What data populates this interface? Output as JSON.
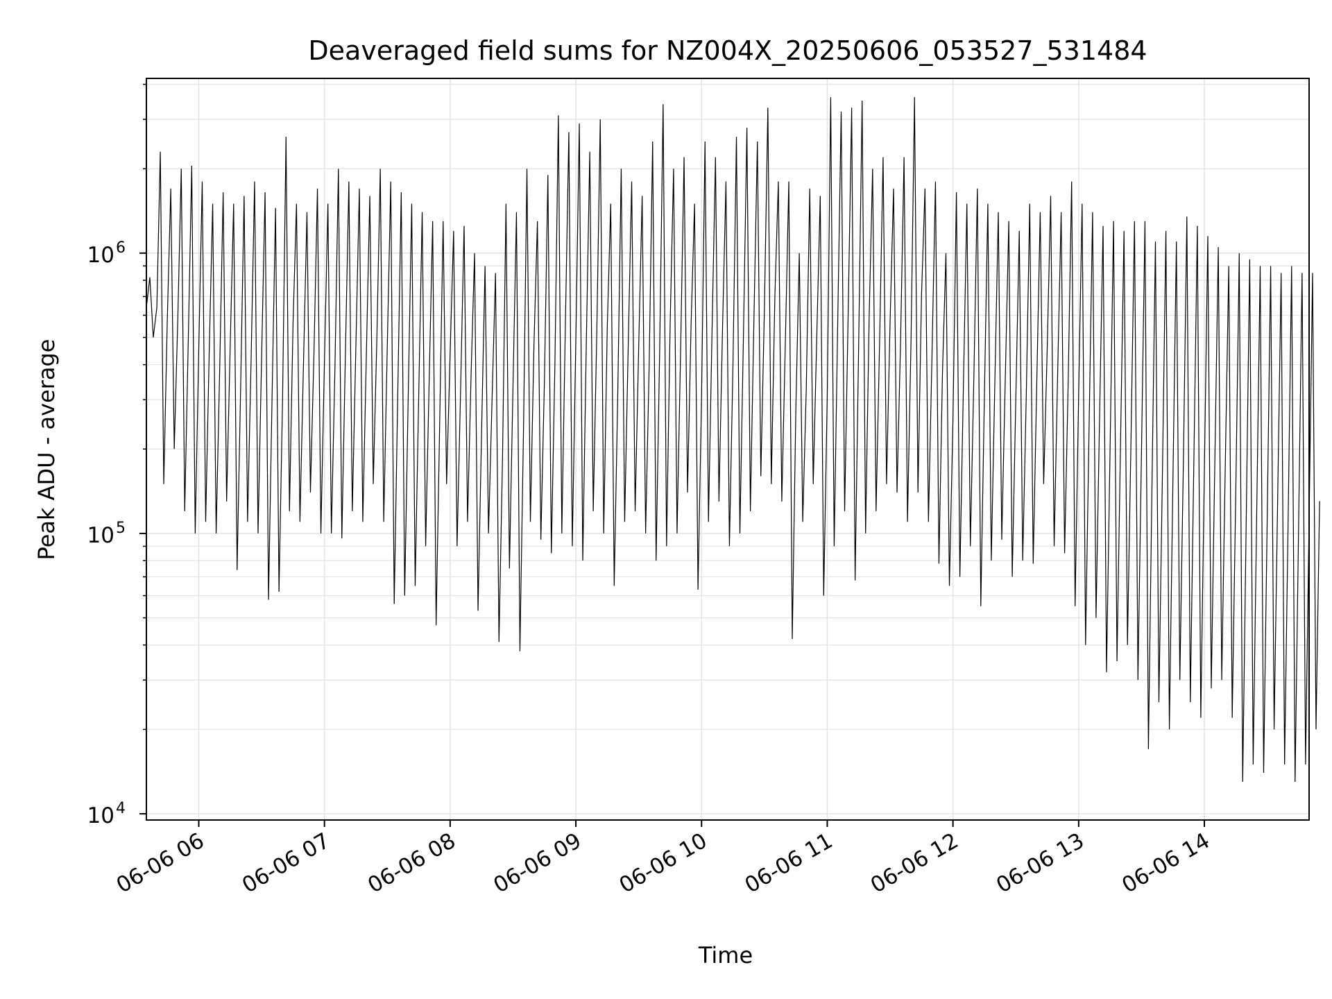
{
  "chart_data": {
    "type": "line",
    "title": "Deaveraged field sums for NZ004X_20250606_053527_531484",
    "xlabel": "Time",
    "ylabel": "Peak ADU - average",
    "yscale": "log",
    "ylim": [
      9500,
      4200000
    ],
    "xlim": [
      "2025-06-06 05:35",
      "2025-06-06 14:50"
    ],
    "x_ticks": [
      {
        "value": "2025-06-06 06:00",
        "label": "06-06 06"
      },
      {
        "value": "2025-06-06 07:00",
        "label": "06-06 07"
      },
      {
        "value": "2025-06-06 08:00",
        "label": "06-06 08"
      },
      {
        "value": "2025-06-06 09:00",
        "label": "06-06 09"
      },
      {
        "value": "2025-06-06 10:00",
        "label": "06-06 10"
      },
      {
        "value": "2025-06-06 11:00",
        "label": "06-06 11"
      },
      {
        "value": "2025-06-06 12:00",
        "label": "06-06 12"
      },
      {
        "value": "2025-06-06 13:00",
        "label": "06-06 13"
      },
      {
        "value": "2025-06-06 14:00",
        "label": "06-06 14"
      }
    ],
    "y_ticks": [
      {
        "value": 10000,
        "base": "10",
        "exp": "4"
      },
      {
        "value": 100000,
        "base": "10",
        "exp": "5"
      },
      {
        "value": 1000000,
        "base": "10",
        "exp": "6"
      }
    ],
    "grid": true,
    "line_color": "#000000",
    "grid_color": "#e5e5e5",
    "x": [
      "2025-06-06 05:35",
      "2025-06-06 05:40",
      "2025-06-06 05:45",
      "2025-06-06 05:50",
      "2025-06-06 05:55",
      "2025-06-06 06:00",
      "2025-06-06 06:05",
      "2025-06-06 06:10",
      "2025-06-06 06:15",
      "2025-06-06 06:20",
      "2025-06-06 06:25",
      "2025-06-06 06:30",
      "2025-06-06 06:35",
      "2025-06-06 06:40",
      "2025-06-06 06:45",
      "2025-06-06 06:50",
      "2025-06-06 06:55",
      "2025-06-06 07:00",
      "2025-06-06 07:05",
      "2025-06-06 07:10",
      "2025-06-06 07:15",
      "2025-06-06 07:20",
      "2025-06-06 07:25",
      "2025-06-06 07:30",
      "2025-06-06 07:35",
      "2025-06-06 07:40",
      "2025-06-06 07:45",
      "2025-06-06 07:50",
      "2025-06-06 07:55",
      "2025-06-06 08:00",
      "2025-06-06 08:05",
      "2025-06-06 08:10",
      "2025-06-06 08:15",
      "2025-06-06 08:20",
      "2025-06-06 08:25",
      "2025-06-06 08:30",
      "2025-06-06 08:35",
      "2025-06-06 08:40",
      "2025-06-06 08:45",
      "2025-06-06 08:50",
      "2025-06-06 08:55",
      "2025-06-06 09:00",
      "2025-06-06 09:05",
      "2025-06-06 09:10",
      "2025-06-06 09:15",
      "2025-06-06 09:20",
      "2025-06-06 09:25",
      "2025-06-06 09:30",
      "2025-06-06 09:35",
      "2025-06-06 09:40",
      "2025-06-06 09:45",
      "2025-06-06 09:50",
      "2025-06-06 09:55",
      "2025-06-06 10:00",
      "2025-06-06 10:05",
      "2025-06-06 10:10",
      "2025-06-06 10:15",
      "2025-06-06 10:20",
      "2025-06-06 10:25",
      "2025-06-06 10:30",
      "2025-06-06 10:35",
      "2025-06-06 10:40",
      "2025-06-06 10:45",
      "2025-06-06 10:50",
      "2025-06-06 10:55",
      "2025-06-06 11:00",
      "2025-06-06 11:05",
      "2025-06-06 11:10",
      "2025-06-06 11:15",
      "2025-06-06 11:20",
      "2025-06-06 11:25",
      "2025-06-06 11:30",
      "2025-06-06 11:35",
      "2025-06-06 11:40",
      "2025-06-06 11:45",
      "2025-06-06 11:50",
      "2025-06-06 11:55",
      "2025-06-06 12:00",
      "2025-06-06 12:05",
      "2025-06-06 12:10",
      "2025-06-06 12:15",
      "2025-06-06 12:20",
      "2025-06-06 12:25",
      "2025-06-06 12:30",
      "2025-06-06 12:35",
      "2025-06-06 12:40",
      "2025-06-06 12:45",
      "2025-06-06 12:50",
      "2025-06-06 12:55",
      "2025-06-06 13:00",
      "2025-06-06 13:05",
      "2025-06-06 13:10",
      "2025-06-06 13:15",
      "2025-06-06 13:20",
      "2025-06-06 13:25",
      "2025-06-06 13:30",
      "2025-06-06 13:35",
      "2025-06-06 13:40",
      "2025-06-06 13:45",
      "2025-06-06 13:50",
      "2025-06-06 13:55",
      "2025-06-06 14:00",
      "2025-06-06 14:05",
      "2025-06-06 14:10",
      "2025-06-06 14:15",
      "2025-06-06 14:20",
      "2025-06-06 14:25",
      "2025-06-06 14:30",
      "2025-06-06 14:35",
      "2025-06-06 14:40",
      "2025-06-06 14:45",
      "2025-06-06 14:50"
    ],
    "y_high": [
      820000,
      2300000,
      1700000,
      2000000,
      2050000,
      1800000,
      1500000,
      1650000,
      1500000,
      1600000,
      1800000,
      1650000,
      1450000,
      2600000,
      1500000,
      1400000,
      1700000,
      1500000,
      2000000,
      1800000,
      1700000,
      1600000,
      2000000,
      1800000,
      1650000,
      1500000,
      1400000,
      1300000,
      1300000,
      1200000,
      1250000,
      1000000,
      900000,
      850000,
      1500000,
      1400000,
      2000000,
      1300000,
      1900000,
      3100000,
      2700000,
      2900000,
      2300000,
      3000000,
      1500000,
      2000000,
      1800000,
      1600000,
      2500000,
      3400000,
      2000000,
      2200000,
      1500000,
      2500000,
      2200000,
      1800000,
      2600000,
      2800000,
      2500000,
      3300000,
      1800000,
      1800000,
      1000000,
      1700000,
      1600000,
      3600000,
      3200000,
      3300000,
      3500000,
      2000000,
      2200000,
      1700000,
      2200000,
      3600000,
      1700000,
      1800000,
      1000000,
      1650000,
      1500000,
      1700000,
      1500000,
      1400000,
      1300000,
      1200000,
      1500000,
      1400000,
      1600000,
      1400000,
      1800000,
      1500000,
      1400000,
      1250000,
      1300000,
      1200000,
      1300000,
      1300000,
      1100000,
      1200000,
      1100000,
      1350000,
      1250000,
      1150000,
      1050000,
      900000,
      1000000,
      950000,
      900000,
      900000,
      850000,
      900000,
      850000,
      850000
    ],
    "y_low": [
      500000,
      150000,
      200000,
      120000,
      100000,
      110000,
      100000,
      130000,
      74000,
      110000,
      100000,
      58000,
      62000,
      120000,
      110000,
      140000,
      100000,
      100000,
      96000,
      120000,
      110000,
      150000,
      110000,
      56000,
      60000,
      65000,
      90000,
      47000,
      150000,
      90000,
      110000,
      53000,
      100000,
      41000,
      75000,
      38000,
      110000,
      95000,
      85000,
      100000,
      90000,
      80000,
      120000,
      100000,
      65000,
      110000,
      120000,
      100000,
      80000,
      90000,
      100000,
      140000,
      63000,
      110000,
      130000,
      90000,
      100000,
      120000,
      160000,
      150000,
      130000,
      42000,
      110000,
      150000,
      60000,
      90000,
      120000,
      68000,
      100000,
      120000,
      150000,
      140000,
      110000,
      140000,
      110000,
      78000,
      65000,
      70000,
      90000,
      55000,
      80000,
      95000,
      70000,
      80000,
      78000,
      150000,
      90000,
      85000,
      55000,
      40000,
      50000,
      32000,
      35000,
      40000,
      30000,
      17000,
      25000,
      20000,
      30000,
      25000,
      22000,
      28000,
      30000,
      22000,
      13000,
      15000,
      14000,
      20000,
      15000,
      13000,
      15000,
      20000
    ]
  }
}
